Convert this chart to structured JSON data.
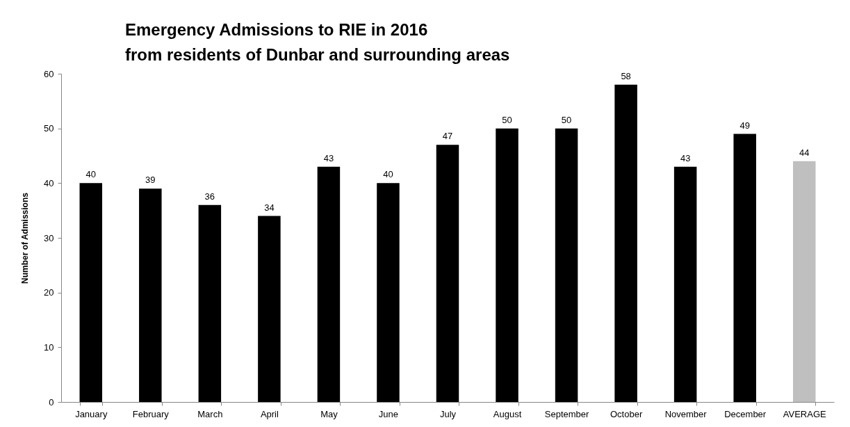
{
  "chart_data": {
    "type": "bar",
    "title": "Emergency Admissions to RIE in 2016\nfrom residents of Dunbar and surrounding areas",
    "ylabel": "Number of Admissions",
    "categories": [
      "January",
      "February",
      "March",
      "April",
      "May",
      "June",
      "July",
      "August",
      "September",
      "October",
      "November",
      "December",
      "AVERAGE"
    ],
    "values": [
      40,
      39,
      36,
      34,
      43,
      40,
      47,
      50,
      50,
      58,
      43,
      49,
      44
    ],
    "colors": [
      "#000000",
      "#000000",
      "#000000",
      "#000000",
      "#000000",
      "#000000",
      "#000000",
      "#000000",
      "#000000",
      "#000000",
      "#000000",
      "#000000",
      "#bfbfbf"
    ],
    "ylim": [
      0,
      60
    ],
    "yticks": [
      0,
      10,
      20,
      30,
      40,
      50,
      60
    ],
    "grid": false,
    "data_labels": true
  }
}
